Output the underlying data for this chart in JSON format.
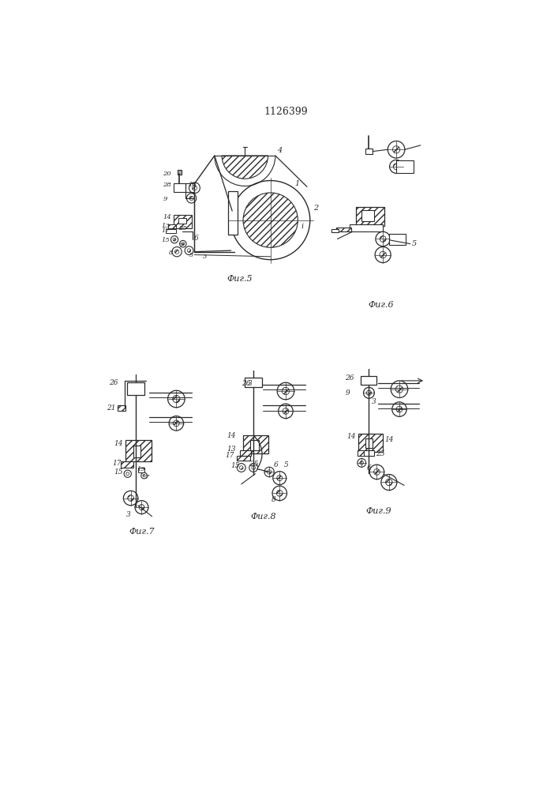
{
  "title": "1126399",
  "bg_color": "#ffffff",
  "line_color": "#2a2a2a",
  "fig5_label": "Фиг.5",
  "fig6_label": "Фиг.6",
  "fig7_label": "Фиг.7",
  "fig8_label": "Фиг.8",
  "fig9_label": "Фиг.9"
}
